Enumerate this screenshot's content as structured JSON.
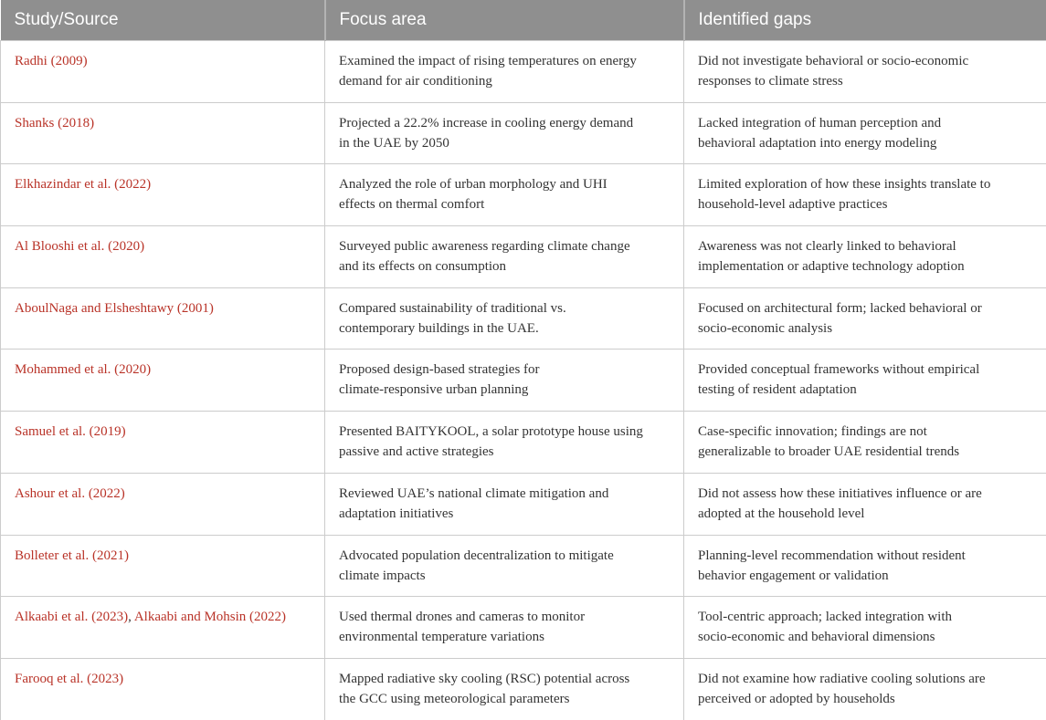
{
  "colors": {
    "header_bg": "#8f8f8f",
    "header_text": "#ffffff",
    "citation_red": "#b93328",
    "body_text": "#333333",
    "border": "#cccccc"
  },
  "table": {
    "columns": [
      {
        "label": "Study/Source"
      },
      {
        "label": "Focus area"
      },
      {
        "label": "Identified gaps"
      }
    ],
    "rows": [
      {
        "citations": [
          "Radhi (2009)"
        ],
        "focus": "Examined the impact of rising temperatures on energy\ndemand for air conditioning",
        "gaps": "Did not investigate behavioral or socio-economic\nresponses to climate stress"
      },
      {
        "citations": [
          "Shanks (2018)"
        ],
        "focus": "Projected a 22.2% increase in cooling energy demand\nin the UAE by 2050",
        "gaps": "Lacked integration of human perception and\nbehavioral adaptation into energy modeling"
      },
      {
        "citations": [
          "Elkhazindar et al. (2022)"
        ],
        "focus": "Analyzed the role of urban morphology and UHI\neffects on thermal comfort",
        "gaps": "Limited exploration of how these insights translate to\nhousehold-level adaptive practices"
      },
      {
        "citations": [
          "Al Blooshi et al. (2020)"
        ],
        "focus": "Surveyed public awareness regarding climate change\nand its effects on consumption",
        "gaps": "Awareness was not clearly linked to behavioral\nimplementation or adaptive technology adoption"
      },
      {
        "citations": [
          "AboulNaga and Elsheshtawy (2001)"
        ],
        "focus": "Compared sustainability of traditional vs.\ncontemporary buildings in the UAE.",
        "gaps": "Focused on architectural form; lacked behavioral or\nsocio-economic analysis"
      },
      {
        "citations": [
          "Mohammed et al. (2020)"
        ],
        "focus": "Proposed design-based strategies for\nclimate-responsive urban planning",
        "gaps": "Provided conceptual frameworks without empirical\ntesting of resident adaptation"
      },
      {
        "citations": [
          "Samuel et al. (2019)"
        ],
        "focus": "Presented BAITYKOOL, a solar prototype house using\npassive and active strategies",
        "gaps": "Case-specific innovation; findings are not\ngeneralizable to broader UAE residential trends"
      },
      {
        "citations": [
          "Ashour et al. (2022)"
        ],
        "focus": "Reviewed UAE’s national climate mitigation and\nadaptation initiatives",
        "gaps": "Did not assess how these initiatives influence or are\nadopted at the household level"
      },
      {
        "citations": [
          "Bolleter et al. (2021)"
        ],
        "focus": "Advocated population decentralization to mitigate\nclimate impacts",
        "gaps": "Planning-level recommendation without resident\nbehavior engagement or validation"
      },
      {
        "citations": [
          "Alkaabi et al. (2023)",
          "Alkaabi and Mohsin (2022)"
        ],
        "focus": "Used thermal drones and cameras to monitor\nenvironmental temperature variations",
        "gaps": "Tool-centric approach; lacked integration with\nsocio-economic and behavioral dimensions"
      },
      {
        "citations": [
          "Farooq et al. (2023)"
        ],
        "focus": "Mapped radiative sky cooling (RSC) potential across\nthe GCC using meteorological parameters",
        "gaps": "Did not examine how radiative cooling solutions are\nperceived or adopted by households"
      }
    ]
  }
}
